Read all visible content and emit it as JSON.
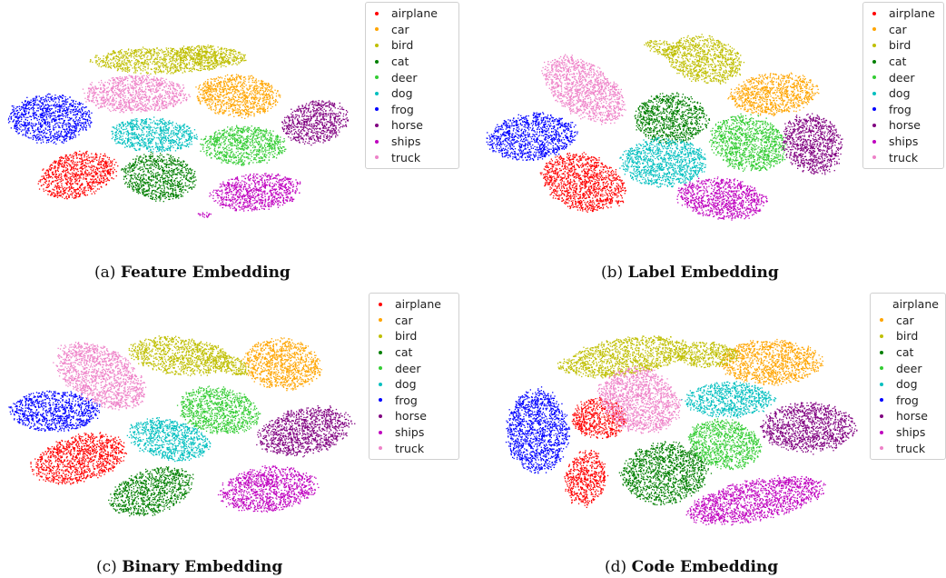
{
  "classes": [
    "airplane",
    "car",
    "bird",
    "cat",
    "deer",
    "dog",
    "frog",
    "horse",
    "ships",
    "truck"
  ],
  "class_colors": {
    "airplane": "#ff0000",
    "car": "#ffa500",
    "bird": "#bfbf00",
    "cat": "#007f00",
    "deer": "#33cc33",
    "dog": "#00bfbf",
    "frog": "#0000ff",
    "horse": "#800080",
    "ships": "#bf00bf",
    "truck": "#ee82c8"
  },
  "chart_data": [
    {
      "type": "scatter",
      "panel": "a",
      "caption_prefix": "(a)",
      "caption_title": "Feature Embedding",
      "legend_position": "upper-right",
      "series": [
        {
          "name": "airplane"
        },
        {
          "name": "car"
        },
        {
          "name": "bird"
        },
        {
          "name": "cat"
        },
        {
          "name": "deer"
        },
        {
          "name": "dog"
        },
        {
          "name": "frog"
        },
        {
          "name": "horse"
        },
        {
          "name": "ships"
        },
        {
          "name": "truck"
        }
      ]
    },
    {
      "type": "scatter",
      "panel": "b",
      "caption_prefix": "(b)",
      "caption_title": "Label Embedding",
      "legend_position": "upper-right",
      "series": [
        {
          "name": "airplane"
        },
        {
          "name": "car"
        },
        {
          "name": "bird"
        },
        {
          "name": "cat"
        },
        {
          "name": "deer"
        },
        {
          "name": "dog"
        },
        {
          "name": "frog"
        },
        {
          "name": "horse"
        },
        {
          "name": "ships"
        },
        {
          "name": "truck"
        }
      ]
    },
    {
      "type": "scatter",
      "panel": "c",
      "caption_prefix": "(c)",
      "caption_title": "Binary Embedding",
      "legend_position": "upper-right",
      "series": [
        {
          "name": "airplane"
        },
        {
          "name": "car"
        },
        {
          "name": "bird"
        },
        {
          "name": "cat"
        },
        {
          "name": "deer"
        },
        {
          "name": "dog"
        },
        {
          "name": "frog"
        },
        {
          "name": "horse"
        },
        {
          "name": "ships"
        },
        {
          "name": "truck"
        }
      ]
    },
    {
      "type": "scatter",
      "panel": "d",
      "caption_prefix": "(d)",
      "caption_title": "Code Embedding",
      "legend_position": "upper-right",
      "series": [
        {
          "name": "airplane"
        },
        {
          "name": "car"
        },
        {
          "name": "bird"
        },
        {
          "name": "cat"
        },
        {
          "name": "deer"
        },
        {
          "name": "dog"
        },
        {
          "name": "frog"
        },
        {
          "name": "horse"
        },
        {
          "name": "ships"
        },
        {
          "name": "truck"
        }
      ]
    }
  ]
}
